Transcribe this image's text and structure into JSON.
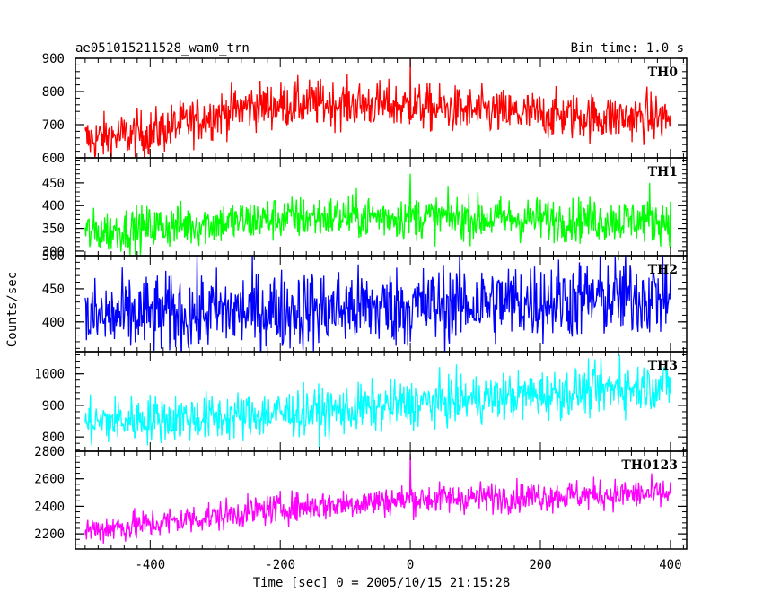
{
  "header": {
    "title": "ae051015211528_wam0_trn",
    "bin_time": "Bin time: 1.0 s"
  },
  "chart_data": {
    "type": "line",
    "xlabel": "Time [sec] 0 = 2005/10/15 21:15:28",
    "ylabel": "Counts/sec",
    "xlim": [
      -515,
      425
    ],
    "x_ticks": [
      -400,
      -200,
      0,
      200,
      400
    ],
    "x_range": [
      -500,
      400
    ],
    "panels": [
      {
        "name": "TH0",
        "color": "#ff0000",
        "ylim": [
          600,
          900
        ],
        "y_ticks": [
          600,
          700,
          800,
          900
        ],
        "trend": [
          [
            -500,
            655
          ],
          [
            -400,
            675
          ],
          [
            -300,
            730
          ],
          [
            -250,
            755
          ],
          [
            -150,
            765
          ],
          [
            -50,
            760
          ],
          [
            0,
            755
          ],
          [
            100,
            740
          ],
          [
            200,
            730
          ],
          [
            300,
            722
          ],
          [
            400,
            720
          ]
        ],
        "noise": 35,
        "spikes": [
          [
            0,
            900
          ],
          [
            364,
            815
          ]
        ]
      },
      {
        "name": "TH1",
        "color": "#00ff00",
        "ylim": [
          290,
          505
        ],
        "y_ticks": [
          300,
          350,
          400,
          450
        ],
        "trend": [
          [
            -500,
            340
          ],
          [
            -400,
            352
          ],
          [
            -300,
            362
          ],
          [
            -200,
            372
          ],
          [
            -100,
            376
          ],
          [
            0,
            375
          ],
          [
            100,
            372
          ],
          [
            200,
            370
          ],
          [
            300,
            368
          ],
          [
            400,
            368
          ]
        ],
        "noise": 24,
        "spikes": [
          [
            0,
            470
          ],
          [
            368,
            450
          ]
        ]
      },
      {
        "name": "TH2",
        "color": "#0000ff",
        "ylim": [
          355,
          500
        ],
        "y_ticks": [
          400,
          450,
          500
        ],
        "trend": [
          [
            -500,
            405
          ],
          [
            -400,
            410
          ],
          [
            -300,
            415
          ],
          [
            -200,
            418
          ],
          [
            -100,
            420
          ],
          [
            0,
            423
          ],
          [
            100,
            428
          ],
          [
            200,
            432
          ],
          [
            300,
            436
          ],
          [
            400,
            440
          ]
        ],
        "noise": 30,
        "spikes": []
      },
      {
        "name": "TH3",
        "color": "#00ffff",
        "ylim": [
          755,
          1070
        ],
        "y_ticks": [
          800,
          900,
          1000
        ],
        "trend": [
          [
            -500,
            845
          ],
          [
            -400,
            858
          ],
          [
            -300,
            862
          ],
          [
            -200,
            875
          ],
          [
            -100,
            885
          ],
          [
            0,
            905
          ],
          [
            100,
            920
          ],
          [
            200,
            935
          ],
          [
            300,
            950
          ],
          [
            400,
            965
          ]
        ],
        "noise": 38,
        "spikes": [
          [
            322,
            1060
          ]
        ]
      },
      {
        "name": "TH0123",
        "color": "#ff00ff",
        "ylim": [
          2090,
          2800
        ],
        "y_ticks": [
          2200,
          2400,
          2600,
          2800
        ],
        "trend": [
          [
            -500,
            2225
          ],
          [
            -400,
            2270
          ],
          [
            -300,
            2330
          ],
          [
            -200,
            2385
          ],
          [
            -100,
            2420
          ],
          [
            0,
            2450
          ],
          [
            100,
            2465
          ],
          [
            200,
            2475
          ],
          [
            300,
            2485
          ],
          [
            400,
            2490
          ]
        ],
        "noise": 55,
        "spikes": [
          [
            0,
            2780
          ]
        ]
      }
    ]
  }
}
